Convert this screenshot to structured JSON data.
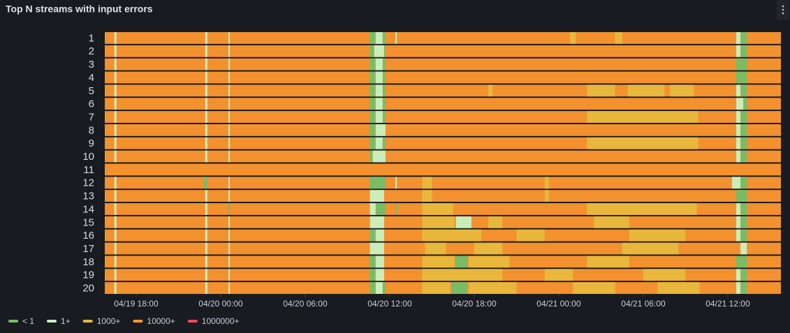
{
  "header": {
    "title": "Top N streams with input errors"
  },
  "chart_data": {
    "type": "state-timeline",
    "xlim": [
      15.77,
      63.77
    ],
    "xticks": [
      {
        "value": 18,
        "label": "04/19 18:00"
      },
      {
        "value": 24,
        "label": "04/20 00:00"
      },
      {
        "value": 30,
        "label": "04/20 06:00"
      },
      {
        "value": 36,
        "label": "04/20 12:00"
      },
      {
        "value": 42,
        "label": "04/20 18:00"
      },
      {
        "value": 48,
        "label": "04/21 00:00"
      },
      {
        "value": 54,
        "label": "04/21 06:00"
      },
      {
        "value": 60,
        "label": "04/21 12:00"
      }
    ],
    "states": [
      {
        "name": "< 1",
        "color": "#73bf69"
      },
      {
        "name": "1+",
        "color": "#c8f2c2"
      },
      {
        "name": "1000+",
        "color": "#e8b93c"
      },
      {
        "name": "10000+",
        "color": "#ff9830"
      },
      {
        "name": "1000000+",
        "color": "#f2495c"
      }
    ],
    "rows": [
      {
        "name": "1",
        "segments": [
          [
            15.77,
            63.77,
            3
          ],
          [
            16.45,
            16.6,
            1
          ],
          [
            22.9,
            23.05,
            1
          ],
          [
            24.55,
            24.65,
            1
          ],
          [
            34.6,
            35.0,
            0
          ],
          [
            35.0,
            35.5,
            1
          ],
          [
            35.5,
            35.7,
            0
          ],
          [
            36.4,
            36.5,
            1
          ],
          [
            48.8,
            49.2,
            2
          ],
          [
            52.0,
            52.5,
            2
          ],
          [
            60.6,
            60.9,
            1
          ],
          [
            60.9,
            61.35,
            0
          ]
        ]
      },
      {
        "name": "2",
        "segments": [
          [
            15.77,
            63.77,
            3
          ],
          [
            16.45,
            16.6,
            1
          ],
          [
            22.9,
            23.05,
            1
          ],
          [
            24.55,
            24.65,
            1
          ],
          [
            34.6,
            34.9,
            0
          ],
          [
            34.9,
            35.6,
            1
          ],
          [
            35.6,
            35.7,
            0
          ],
          [
            60.6,
            60.9,
            1
          ],
          [
            60.9,
            61.35,
            0
          ]
        ]
      },
      {
        "name": "3",
        "segments": [
          [
            15.77,
            63.77,
            3
          ],
          [
            16.45,
            16.6,
            1
          ],
          [
            22.9,
            23.05,
            1
          ],
          [
            24.55,
            24.65,
            1
          ],
          [
            34.6,
            35.0,
            0
          ],
          [
            35.0,
            35.5,
            1
          ],
          [
            35.5,
            35.7,
            0
          ],
          [
            60.6,
            60.9,
            0
          ],
          [
            60.9,
            61.35,
            0
          ]
        ]
      },
      {
        "name": "4",
        "segments": [
          [
            15.77,
            63.77,
            3
          ],
          [
            16.45,
            16.6,
            1
          ],
          [
            22.9,
            23.05,
            1
          ],
          [
            24.55,
            24.65,
            1
          ],
          [
            34.6,
            35.0,
            0
          ],
          [
            35.0,
            35.5,
            1
          ],
          [
            35.5,
            35.7,
            0
          ],
          [
            60.6,
            61.35,
            0
          ]
        ]
      },
      {
        "name": "5",
        "segments": [
          [
            15.77,
            63.77,
            3
          ],
          [
            16.45,
            16.6,
            1
          ],
          [
            22.9,
            23.05,
            1
          ],
          [
            24.55,
            24.65,
            1
          ],
          [
            34.6,
            35.0,
            0
          ],
          [
            35.0,
            35.5,
            1
          ],
          [
            35.5,
            35.7,
            0
          ],
          [
            43.0,
            43.3,
            2
          ],
          [
            50.0,
            52.0,
            2
          ],
          [
            52.9,
            55.5,
            2
          ],
          [
            55.9,
            57.6,
            2
          ],
          [
            60.6,
            60.9,
            1
          ],
          [
            60.9,
            61.35,
            0
          ]
        ]
      },
      {
        "name": "6",
        "segments": [
          [
            15.77,
            63.77,
            3
          ],
          [
            16.45,
            16.6,
            1
          ],
          [
            22.9,
            23.05,
            1
          ],
          [
            24.55,
            24.65,
            1
          ],
          [
            34.6,
            35.0,
            0
          ],
          [
            35.0,
            35.5,
            1
          ],
          [
            35.5,
            35.7,
            0
          ],
          [
            60.6,
            61.1,
            1
          ],
          [
            61.1,
            61.35,
            0
          ]
        ]
      },
      {
        "name": "7",
        "segments": [
          [
            15.77,
            63.77,
            3
          ],
          [
            16.45,
            16.6,
            1
          ],
          [
            22.9,
            23.05,
            1
          ],
          [
            24.55,
            24.65,
            1
          ],
          [
            34.6,
            35.0,
            0
          ],
          [
            35.0,
            35.5,
            1
          ],
          [
            35.5,
            35.7,
            0
          ],
          [
            50.0,
            57.9,
            2
          ],
          [
            60.6,
            60.9,
            1
          ],
          [
            60.9,
            61.35,
            0
          ]
        ]
      },
      {
        "name": "8",
        "segments": [
          [
            15.77,
            63.77,
            3
          ],
          [
            16.45,
            16.6,
            1
          ],
          [
            22.9,
            23.05,
            1
          ],
          [
            24.55,
            24.65,
            1
          ],
          [
            34.6,
            35.0,
            0
          ],
          [
            35.0,
            35.7,
            1
          ],
          [
            60.6,
            60.9,
            1
          ],
          [
            60.9,
            61.35,
            0
          ]
        ]
      },
      {
        "name": "9",
        "segments": [
          [
            15.77,
            63.77,
            3
          ],
          [
            16.45,
            16.6,
            1
          ],
          [
            22.9,
            23.05,
            1
          ],
          [
            24.55,
            24.65,
            1
          ],
          [
            34.6,
            35.0,
            0
          ],
          [
            35.0,
            35.5,
            1
          ],
          [
            35.5,
            35.7,
            0
          ],
          [
            50.0,
            57.9,
            2
          ],
          [
            60.6,
            60.9,
            1
          ],
          [
            60.9,
            61.35,
            0
          ]
        ]
      },
      {
        "name": "10",
        "segments": [
          [
            15.77,
            63.77,
            3
          ],
          [
            16.45,
            16.6,
            1
          ],
          [
            22.9,
            23.05,
            1
          ],
          [
            24.55,
            24.65,
            1
          ],
          [
            34.6,
            34.8,
            0
          ],
          [
            34.8,
            35.7,
            1
          ],
          [
            60.6,
            60.9,
            1
          ],
          [
            60.9,
            61.35,
            0
          ]
        ]
      },
      {
        "name": "11",
        "segments": [
          [
            15.77,
            63.77,
            3
          ]
        ]
      },
      {
        "name": "12",
        "segments": [
          [
            15.77,
            63.77,
            3
          ],
          [
            16.45,
            16.6,
            1
          ],
          [
            22.8,
            23.05,
            0
          ],
          [
            24.55,
            24.65,
            1
          ],
          [
            34.6,
            35.7,
            0
          ],
          [
            36.4,
            36.5,
            1
          ],
          [
            38.3,
            39.0,
            2
          ],
          [
            47.0,
            47.3,
            2
          ],
          [
            60.3,
            60.9,
            1
          ],
          [
            60.9,
            61.35,
            0
          ]
        ]
      },
      {
        "name": "13",
        "segments": [
          [
            15.77,
            63.77,
            3
          ],
          [
            16.45,
            16.6,
            1
          ],
          [
            22.9,
            23.05,
            1
          ],
          [
            24.55,
            24.65,
            1
          ],
          [
            34.6,
            35.6,
            1
          ],
          [
            38.3,
            39.0,
            2
          ],
          [
            47.0,
            47.3,
            2
          ],
          [
            60.6,
            61.35,
            0
          ]
        ]
      },
      {
        "name": "14",
        "segments": [
          [
            15.77,
            63.77,
            3
          ],
          [
            16.45,
            16.6,
            1
          ],
          [
            22.9,
            23.05,
            1
          ],
          [
            24.55,
            24.65,
            0
          ],
          [
            34.6,
            35.0,
            1
          ],
          [
            35.0,
            35.7,
            0
          ],
          [
            36.4,
            36.5,
            0
          ],
          [
            38.3,
            40.5,
            2
          ],
          [
            50.0,
            57.8,
            2
          ],
          [
            60.6,
            60.9,
            1
          ],
          [
            60.9,
            61.35,
            0
          ]
        ]
      },
      {
        "name": "15",
        "segments": [
          [
            15.77,
            63.77,
            3
          ],
          [
            16.45,
            16.6,
            1
          ],
          [
            22.9,
            23.05,
            1
          ],
          [
            24.55,
            24.65,
            1
          ],
          [
            34.6,
            35.6,
            1
          ],
          [
            38.3,
            40.6,
            2
          ],
          [
            40.7,
            41.8,
            1
          ],
          [
            43.0,
            44.0,
            2
          ],
          [
            50.5,
            53.0,
            2
          ],
          [
            60.6,
            60.9,
            1
          ],
          [
            60.9,
            61.35,
            0
          ]
        ]
      },
      {
        "name": "16",
        "segments": [
          [
            15.77,
            63.77,
            3
          ],
          [
            16.45,
            16.6,
            1
          ],
          [
            22.9,
            23.05,
            1
          ],
          [
            24.55,
            24.65,
            1
          ],
          [
            34.6,
            35.0,
            0
          ],
          [
            35.0,
            35.6,
            1
          ],
          [
            38.3,
            42.5,
            2
          ],
          [
            45.0,
            47.0,
            2
          ],
          [
            53.0,
            57.0,
            2
          ],
          [
            60.6,
            60.9,
            1
          ],
          [
            60.9,
            61.35,
            0
          ]
        ]
      },
      {
        "name": "17",
        "segments": [
          [
            15.77,
            63.77,
            3
          ],
          [
            16.45,
            16.6,
            1
          ],
          [
            22.9,
            23.05,
            1
          ],
          [
            24.55,
            24.65,
            1
          ],
          [
            34.6,
            35.6,
            1
          ],
          [
            38.5,
            40.0,
            2
          ],
          [
            42.0,
            44.0,
            2
          ],
          [
            52.5,
            56.5,
            2
          ],
          [
            60.9,
            61.35,
            1
          ]
        ]
      },
      {
        "name": "18",
        "segments": [
          [
            15.77,
            63.77,
            3
          ],
          [
            16.45,
            16.6,
            1
          ],
          [
            22.9,
            23.05,
            1
          ],
          [
            24.55,
            24.65,
            1
          ],
          [
            34.6,
            35.0,
            0
          ],
          [
            35.0,
            35.6,
            1
          ],
          [
            38.3,
            40.6,
            2
          ],
          [
            40.66,
            41.55,
            0
          ],
          [
            41.6,
            44.5,
            2
          ],
          [
            50.0,
            53.0,
            2
          ],
          [
            60.6,
            61.35,
            0
          ]
        ]
      },
      {
        "name": "19",
        "segments": [
          [
            15.77,
            63.77,
            3
          ],
          [
            16.45,
            16.6,
            1
          ],
          [
            22.9,
            23.05,
            1
          ],
          [
            24.55,
            24.65,
            1
          ],
          [
            34.6,
            35.0,
            0
          ],
          [
            35.0,
            35.6,
            1
          ],
          [
            38.3,
            44.0,
            2
          ],
          [
            47.0,
            49.0,
            2
          ],
          [
            54.0,
            57.0,
            2
          ],
          [
            60.6,
            60.9,
            1
          ],
          [
            60.9,
            61.35,
            0
          ]
        ]
      },
      {
        "name": "20",
        "segments": [
          [
            15.77,
            63.77,
            3
          ],
          [
            16.45,
            16.6,
            1
          ],
          [
            22.9,
            23.05,
            1
          ],
          [
            24.55,
            24.65,
            1
          ],
          [
            34.6,
            35.0,
            0
          ],
          [
            35.0,
            35.5,
            1
          ],
          [
            35.5,
            35.7,
            0
          ],
          [
            38.3,
            40.3,
            2
          ],
          [
            40.36,
            41.55,
            0
          ],
          [
            41.6,
            45.0,
            2
          ],
          [
            49.0,
            52.0,
            2
          ],
          [
            55.0,
            58.0,
            2
          ],
          [
            60.6,
            60.9,
            1
          ],
          [
            60.9,
            61.35,
            0
          ]
        ]
      }
    ]
  }
}
